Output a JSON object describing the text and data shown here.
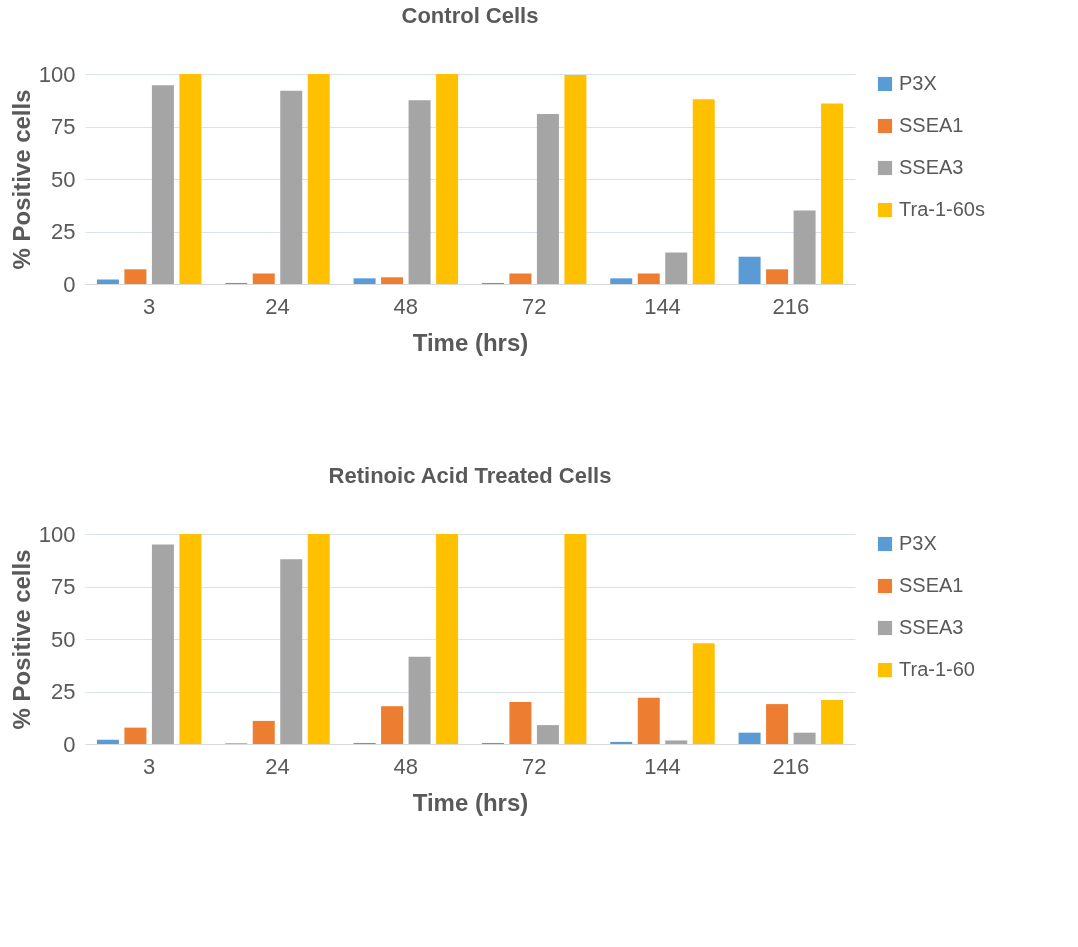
{
  "chart_data": [
    {
      "type": "bar",
      "title": "Control Cells",
      "xlabel": "Time (hrs)",
      "ylabel": "% Positive cells",
      "categories": [
        "3",
        "24",
        "48",
        "72",
        "144",
        "216"
      ],
      "series": [
        {
          "name": "P3X",
          "color": "#5b9bd5",
          "values": [
            2.2,
            0.5,
            2.7,
            0.5,
            2.7,
            13
          ]
        },
        {
          "name": "SSEA1",
          "color": "#ed7d31",
          "values": [
            7,
            5,
            3.2,
            5,
            5,
            7
          ]
        },
        {
          "name": "SSEA3",
          "color": "#a5a5a5",
          "values": [
            94.6,
            92,
            87.5,
            81,
            15,
            35
          ]
        },
        {
          "name": "Tra-1-60s",
          "color": "#ffc000",
          "values": [
            100,
            100,
            100,
            99.5,
            88,
            86
          ]
        }
      ],
      "ylim": [
        0,
        100
      ],
      "yticks": [
        0,
        25,
        50,
        75,
        100
      ],
      "grid": "y",
      "legend": "right"
    },
    {
      "type": "bar",
      "title": "Retinoic Acid Treated Cells",
      "xlabel": "Time (hrs)",
      "ylabel": "% Positive cells",
      "categories": [
        "3",
        "24",
        "48",
        "72",
        "144",
        "216"
      ],
      "series": [
        {
          "name": "P3X",
          "color": "#5b9bd5",
          "values": [
            2,
            0.3,
            0.5,
            0.5,
            1,
            5.4
          ]
        },
        {
          "name": "SSEA1",
          "color": "#ed7d31",
          "values": [
            7.8,
            11,
            18,
            20,
            22,
            19
          ]
        },
        {
          "name": "SSEA3",
          "color": "#a5a5a5",
          "values": [
            95,
            88,
            41.6,
            9,
            1.7,
            5.4
          ]
        },
        {
          "name": "Tra-1-60",
          "color": "#ffc000",
          "values": [
            100,
            100,
            100,
            100,
            48,
            21
          ]
        }
      ],
      "ylim": [
        0,
        100
      ],
      "yticks": [
        0,
        25,
        50,
        75,
        100
      ],
      "grid": "y",
      "legend": "right"
    }
  ]
}
